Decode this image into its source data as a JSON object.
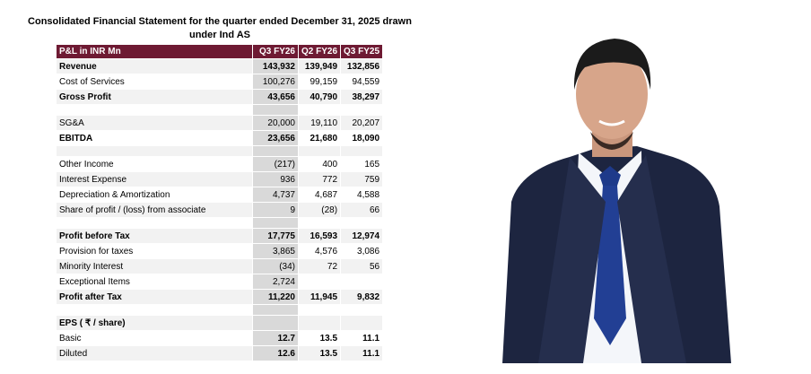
{
  "title": "Consolidated Financial Statement for the quarter ended December 31, 2025 drawn under Ind AS",
  "table": {
    "header": [
      "P&L in INR Mn",
      "Q3 FY26",
      "Q2 FY26",
      "Q3 FY25"
    ],
    "sections": [
      {
        "rows": [
          {
            "cells": [
              "Revenue",
              "143,932",
              "139,949",
              "132,856"
            ],
            "bold": true
          },
          {
            "cells": [
              "Cost of Services",
              "100,276",
              "99,159",
              "94,559"
            ],
            "bold": false
          },
          {
            "cells": [
              "Gross Profit",
              "43,656",
              "40,790",
              "38,297"
            ],
            "bold": true
          }
        ]
      },
      {
        "rows": [
          {
            "cells": [
              "SG&A",
              "20,000",
              "19,110",
              "20,207"
            ],
            "bold": false
          },
          {
            "cells": [
              "EBITDA",
              "23,656",
              "21,680",
              "18,090"
            ],
            "bold": true
          }
        ]
      },
      {
        "rows": [
          {
            "cells": [
              "Other Income",
              "(217)",
              "400",
              "165"
            ],
            "bold": false
          },
          {
            "cells": [
              "Interest Expense",
              "936",
              "772",
              "759"
            ],
            "bold": false
          },
          {
            "cells": [
              "Depreciation & Amortization",
              "4,737",
              "4,687",
              "4,588"
            ],
            "bold": false
          },
          {
            "cells": [
              "Share of profit / (loss) from associate",
              "9",
              "(28)",
              "66"
            ],
            "bold": false
          }
        ]
      },
      {
        "rows": [
          {
            "cells": [
              "Profit before Tax",
              "17,775",
              "16,593",
              "12,974"
            ],
            "bold": true
          },
          {
            "cells": [
              "Provision for taxes",
              "3,865",
              "4,576",
              "3,086"
            ],
            "bold": false
          },
          {
            "cells": [
              "Minority Interest",
              "(34)",
              "72",
              "56"
            ],
            "bold": false
          },
          {
            "cells": [
              "Exceptional Items",
              "2,724",
              null,
              null
            ],
            "bold": false
          },
          {
            "cells": [
              "Profit after Tax",
              "11,220",
              "11,945",
              "9,832"
            ],
            "bold": true
          }
        ]
      },
      {
        "rows": [
          {
            "cells": [
              "EPS ( ₹ / share)",
              null,
              null,
              null
            ],
            "bold": true
          },
          {
            "cells": [
              "Basic",
              "12.7",
              "13.5",
              "11.1"
            ],
            "bold": false,
            "bold_values": true
          },
          {
            "cells": [
              "Diluted",
              "12.6",
              "13.5",
              "11.1"
            ],
            "bold": false,
            "bold_values": true
          }
        ]
      }
    ]
  }
}
